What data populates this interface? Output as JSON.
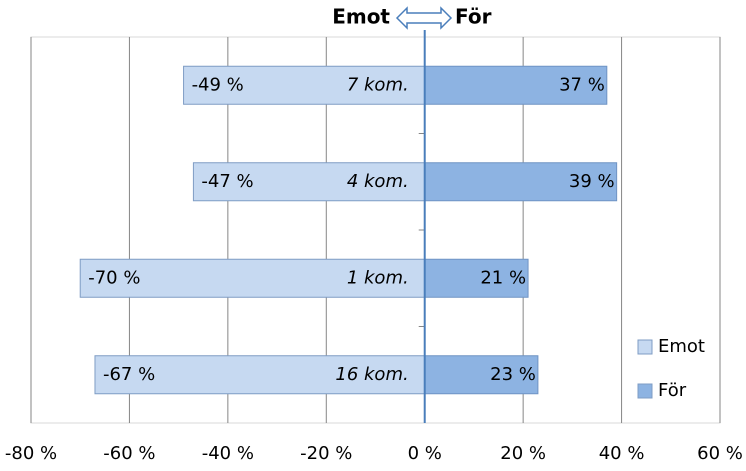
{
  "chart_data": {
    "type": "diverging-bar",
    "left_header": "Emot",
    "right_header": "För",
    "categories": [
      "7 kom.",
      "4 kom.",
      "1 kom.",
      "16 kom."
    ],
    "series": [
      {
        "name": "Emot",
        "color": "#c6d9f1",
        "values": [
          -49,
          -47,
          -70,
          -67
        ],
        "value_labels": [
          "-49 %",
          "-47 %",
          "-70 %",
          "-67 %"
        ]
      },
      {
        "name": "För",
        "color": "#8db3e2",
        "values": [
          37,
          39,
          21,
          23
        ],
        "value_labels": [
          "37 %",
          "39 %",
          "21 %",
          "23 %"
        ]
      }
    ],
    "xlim": [
      -80,
      60
    ],
    "xticks": [
      {
        "value": -80,
        "label": "-80 %"
      },
      {
        "value": -60,
        "label": "-60 %"
      },
      {
        "value": -40,
        "label": "-40 %"
      },
      {
        "value": -20,
        "label": "-20 %"
      },
      {
        "value": 0,
        "label": "0 %"
      },
      {
        "value": 20,
        "label": "20 %"
      },
      {
        "value": 40,
        "label": "40 %"
      },
      {
        "value": 60,
        "label": "60 %"
      }
    ],
    "grid": true
  }
}
